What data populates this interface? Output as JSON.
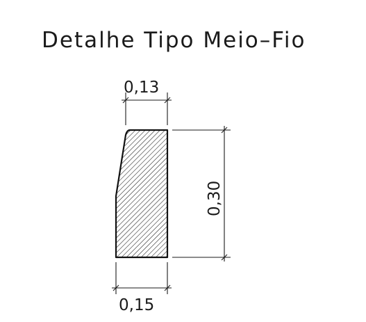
{
  "title": "Detalhe Tipo Meio–Fio",
  "dimensions": {
    "top_width": "0,13",
    "height": "0,30",
    "bottom_width": "0,15"
  },
  "colors": {
    "line": "#1a1a1a",
    "background": "#ffffff"
  }
}
